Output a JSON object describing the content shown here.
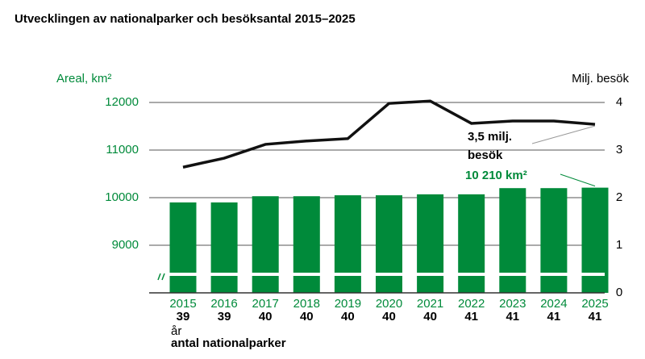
{
  "chart_data": {
    "type": "bar_line",
    "title": "Utvecklingen av nationalparker och besöksantal 2015–2025",
    "ylabel": "Areal, km²",
    "y2label": "Milj. besök",
    "categories": [
      "2015",
      "2016",
      "2017",
      "2018",
      "2019",
      "2020",
      "2021",
      "2022",
      "2023",
      "2024",
      "2025"
    ],
    "counts": [
      "39",
      "39",
      "40",
      "40",
      "40",
      "40",
      "40",
      "41",
      "41",
      "41",
      "41"
    ],
    "xlabel": "år",
    "counts_label": "antal nationalparker",
    "series": [
      {
        "type": "bar",
        "color": "#008a3a",
        "values": [
          9900,
          9900,
          10030,
          10030,
          10050,
          10050,
          10070,
          10070,
          10200,
          10200,
          10210
        ]
      },
      {
        "type": "line",
        "axis": "y2",
        "color": "#111111",
        "values": [
          2.64,
          2.83,
          3.12,
          3.19,
          3.24,
          3.98,
          4.03,
          3.56,
          3.61,
          3.61,
          3.54
        ]
      }
    ],
    "ylim": [
      8000,
      12000
    ],
    "yticks": [
      9000,
      10000,
      11000,
      12000
    ],
    "y2lim": [
      0,
      4
    ],
    "y2ticks": [
      0,
      1,
      2,
      3,
      4
    ],
    "grid": true,
    "axis_break": true,
    "annotations": [
      {
        "text": "3,5 milj.",
        "text2": "besök",
        "series": 1,
        "index": 10
      },
      {
        "text": "10 210 km²",
        "series": 0,
        "index": 10
      }
    ]
  }
}
